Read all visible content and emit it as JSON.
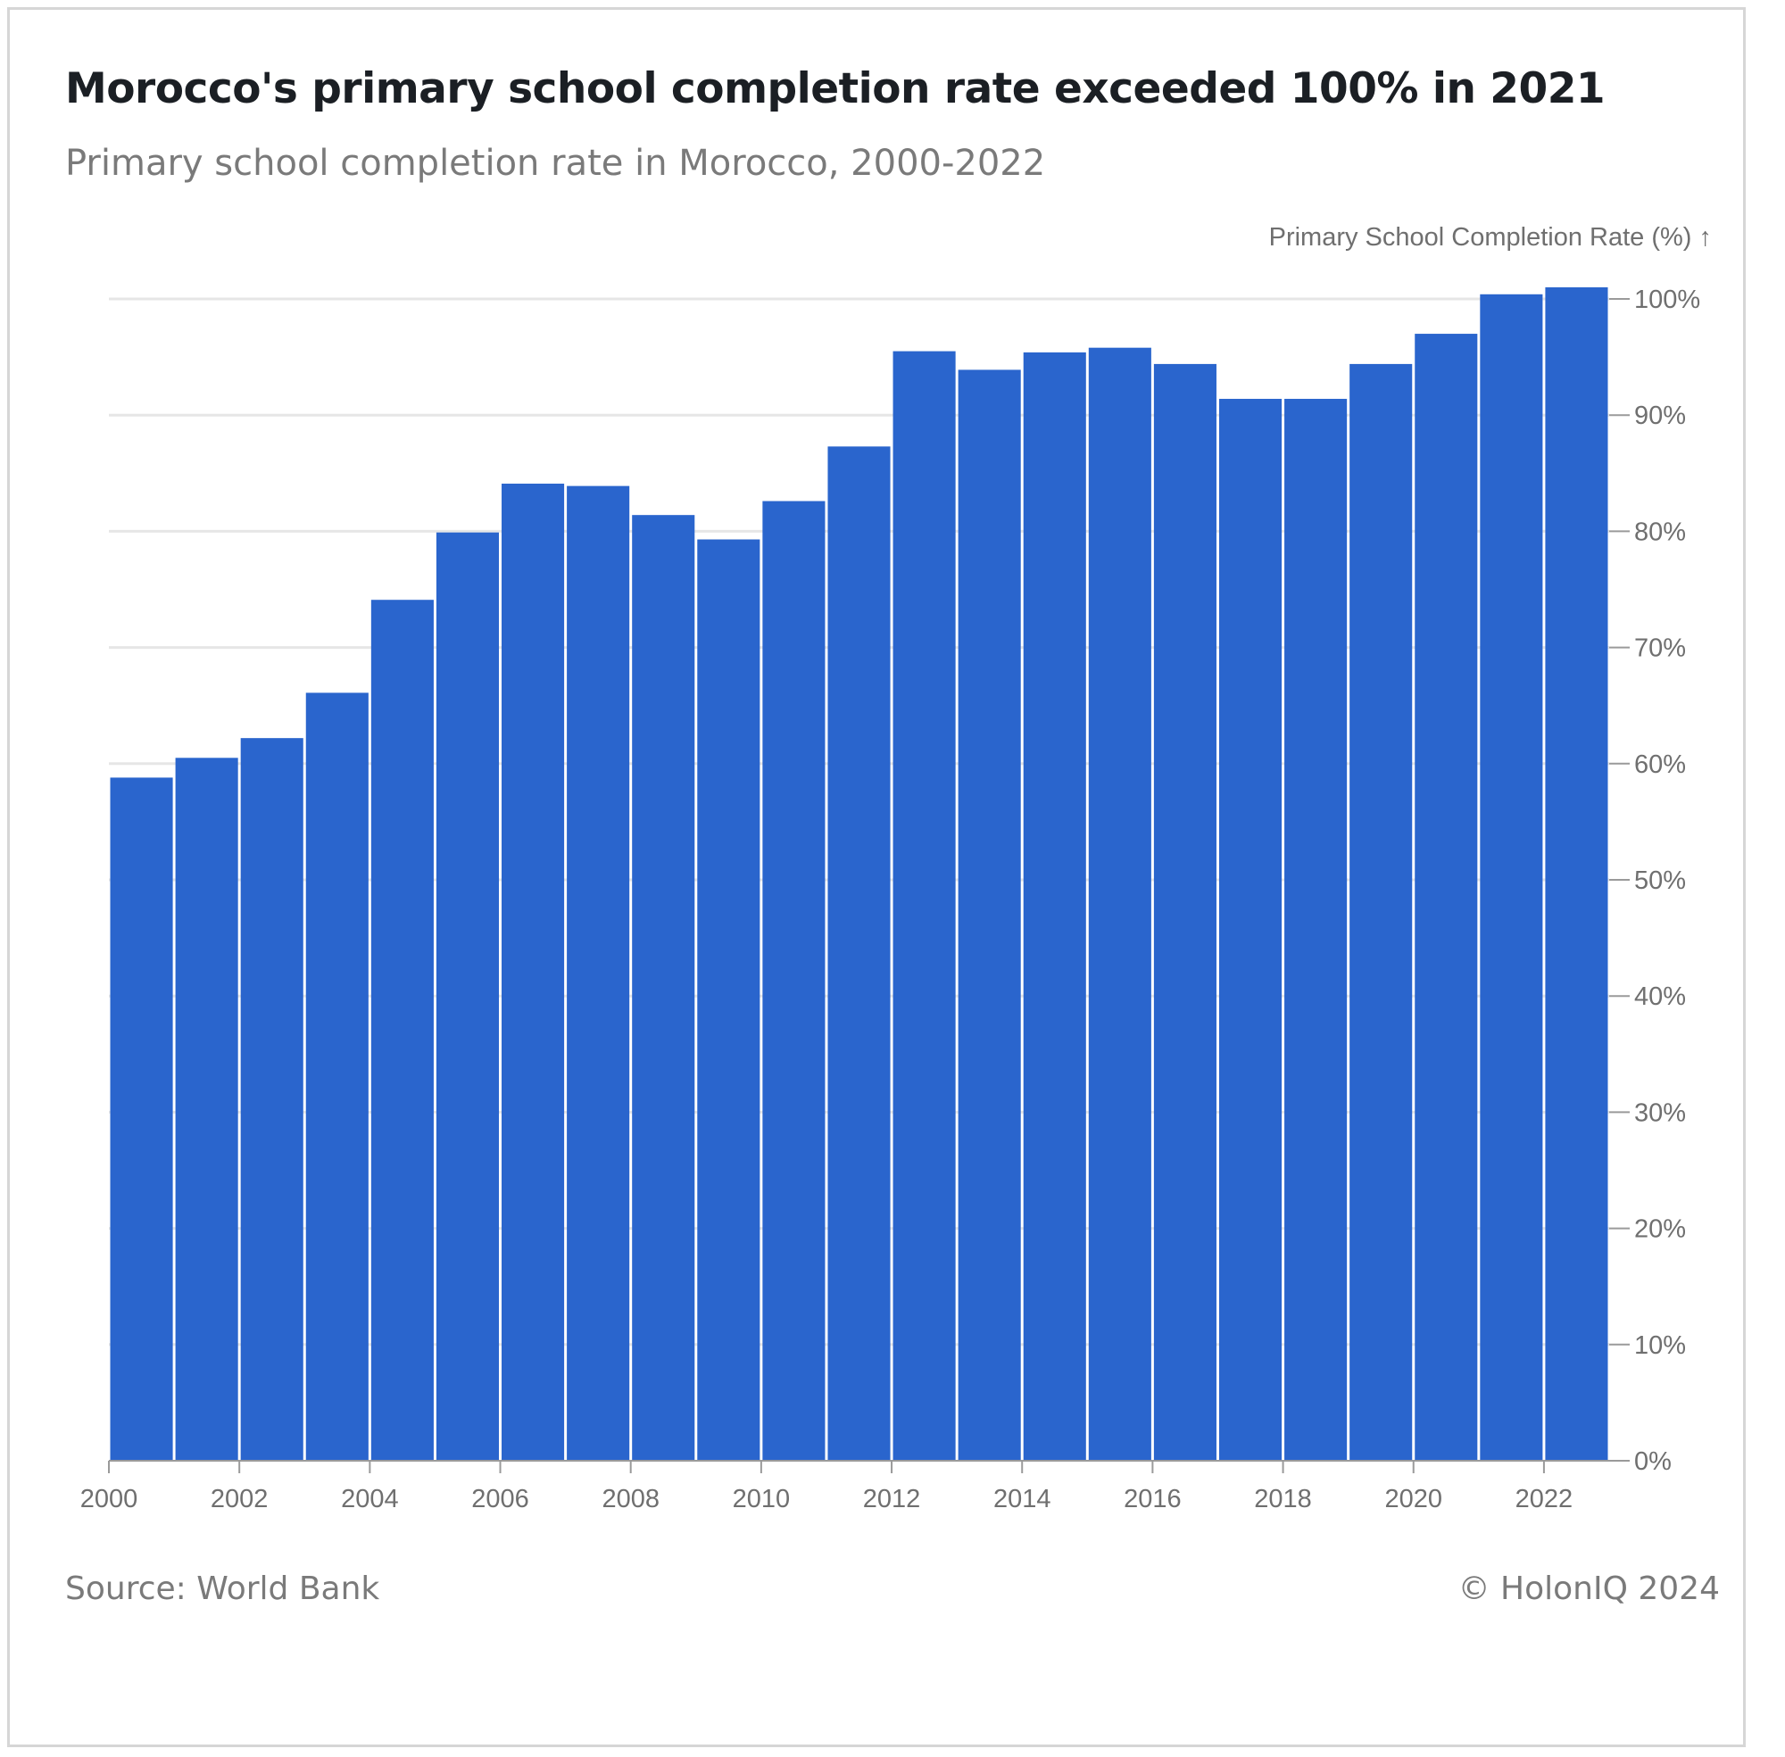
{
  "header": {
    "title": "Morocco's primary school completion rate exceeded 100% in 2021",
    "subtitle": "Primary school completion rate in Morocco, 2000-2022"
  },
  "footer": {
    "source": "Source: World Bank",
    "credit": "© HolonIQ 2024"
  },
  "colors": {
    "bar": "#2a65cd",
    "grid": "#e6e6e6",
    "axis": "#9a9a9a"
  },
  "chart_data": {
    "type": "bar",
    "title": "Morocco's primary school completion rate exceeded 100% in 2021",
    "subtitle": "Primary school completion rate in Morocco, 2000-2022",
    "ylabel": "Primary School Completion Rate (%) ↑",
    "y_axis_side": "right",
    "ylim": [
      0,
      100
    ],
    "yticks": [
      0,
      10,
      20,
      30,
      40,
      50,
      60,
      70,
      80,
      90,
      100
    ],
    "ytick_labels": [
      "0%",
      "10%",
      "20%",
      "30%",
      "40%",
      "50%",
      "60%",
      "70%",
      "80%",
      "90%",
      "100%"
    ],
    "xlim": [
      2000,
      2023
    ],
    "xticks": [
      2000,
      2002,
      2004,
      2006,
      2008,
      2010,
      2012,
      2014,
      2016,
      2018,
      2020,
      2022
    ],
    "xtick_labels": [
      "2000",
      "2002",
      "2004",
      "2006",
      "2008",
      "2010",
      "2012",
      "2014",
      "2016",
      "2018",
      "2020",
      "2022"
    ],
    "grid": true,
    "categories": [
      2000,
      2001,
      2002,
      2003,
      2004,
      2005,
      2006,
      2007,
      2008,
      2009,
      2010,
      2011,
      2012,
      2013,
      2014,
      2015,
      2016,
      2017,
      2018,
      2019,
      2020,
      2021,
      2022
    ],
    "values": [
      58.8,
      60.5,
      62.2,
      66.1,
      74.1,
      79.9,
      84.1,
      83.9,
      81.4,
      79.3,
      82.6,
      87.3,
      95.5,
      93.9,
      95.4,
      95.8,
      94.4,
      91.4,
      91.4,
      94.4,
      97.0,
      100.4,
      101.0
    ]
  }
}
